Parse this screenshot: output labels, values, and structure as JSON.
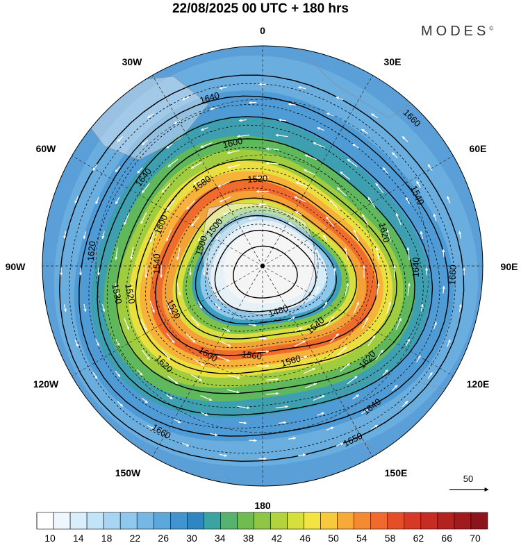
{
  "title": "22/08/2025  00 UTC  + 180 hrs",
  "brand": "MODES",
  "brand_mark": "©",
  "longitude_labels": [
    {
      "id": "lon-0",
      "text": "0"
    },
    {
      "id": "lon-30e",
      "text": "30E"
    },
    {
      "id": "lon-60e",
      "text": "60E"
    },
    {
      "id": "lon-90e",
      "text": "90E"
    },
    {
      "id": "lon-120e",
      "text": "120E"
    },
    {
      "id": "lon-150e",
      "text": "150E"
    },
    {
      "id": "lon-180",
      "text": "180"
    },
    {
      "id": "lon-150w",
      "text": "150W"
    },
    {
      "id": "lon-120w",
      "text": "120W"
    },
    {
      "id": "lon-90w",
      "text": "90W"
    },
    {
      "id": "lon-60w",
      "text": "60W"
    },
    {
      "id": "lon-30w",
      "text": "30W"
    }
  ],
  "contour_labels": [
    "1640",
    "1600",
    "1580",
    "1520",
    "1600",
    "1500",
    "1640",
    "1620",
    "1540",
    "1520",
    "1530",
    "1500",
    "1480",
    "1520",
    "1540",
    "1560",
    "1560",
    "1620",
    "1600",
    "1620",
    "1540",
    "1660",
    "1640",
    "1660",
    "1640",
    "1620",
    "1650",
    "1660"
  ],
  "vector_scale_label": "50",
  "colorbar": {
    "tick_labels": [
      "10",
      "14",
      "18",
      "22",
      "26",
      "30",
      "34",
      "38",
      "42",
      "46",
      "50",
      "54",
      "58",
      "62",
      "66",
      "70"
    ],
    "colors": [
      "#ffffff",
      "#eef7fd",
      "#d9eefb",
      "#c2e4f8",
      "#a8d6f2",
      "#8ec8ec",
      "#75b8e5",
      "#5aa8dc",
      "#4393d0",
      "#2f86c2",
      "#3aa4a0",
      "#55b26f",
      "#6fbd4f",
      "#8fc744",
      "#b3d33e",
      "#d7df3d",
      "#f2e442",
      "#f8c93c",
      "#f7aa37",
      "#f48a31",
      "#ef6a2c",
      "#e44f27",
      "#d63a24",
      "#c72c22",
      "#b42220",
      "#a01a1e",
      "#8c141b"
    ]
  },
  "colors": {
    "background": "#ffffff",
    "land_outline": "#777777",
    "contour": "#000000",
    "arrow": "#ffffff"
  }
}
